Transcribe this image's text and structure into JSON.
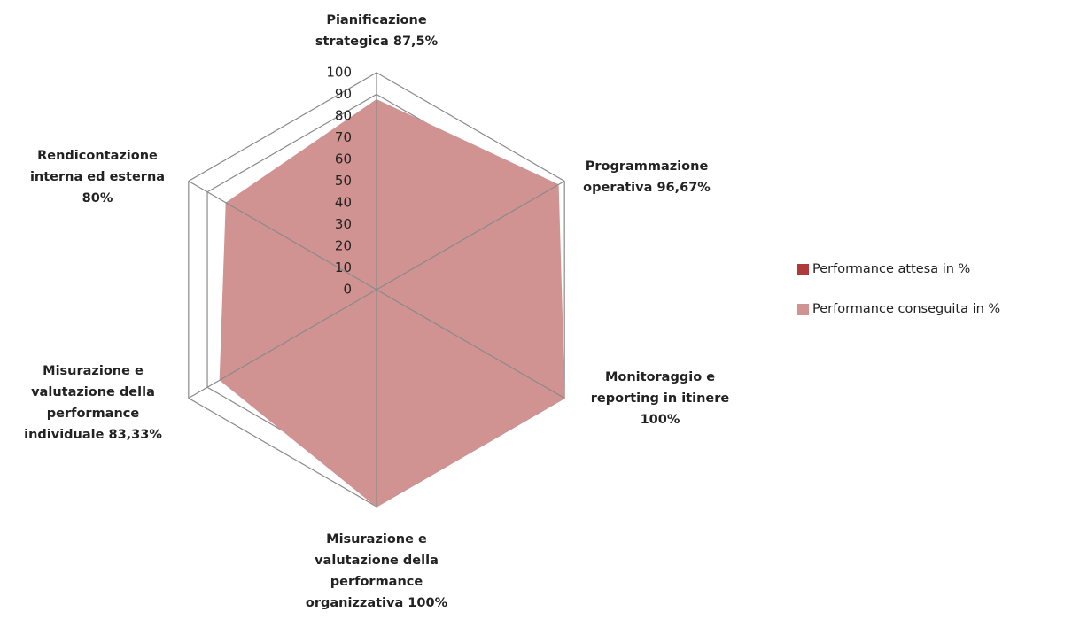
{
  "chart_data": {
    "type": "radar",
    "categories": [
      "Pianificazione strategica 87,5%",
      "Programmazione operativa 96,67%",
      "Monitoraggio e reporting in itinere 100%",
      "Misurazione e valutazione della performance organizzativa 100%",
      "Misurazione e valutazione della performance individuale 83,33%",
      "Rendicontazione interna ed esterna 80%"
    ],
    "series": [
      {
        "name": "Performance attesa in %",
        "color": "#b03a3a",
        "values": [
          null,
          null,
          null,
          null,
          null,
          null
        ]
      },
      {
        "name": "Performance conseguita in %",
        "color": "#d09392",
        "values": [
          87.5,
          96.67,
          100,
          100,
          83.33,
          80
        ]
      }
    ],
    "ylim": [
      0,
      100
    ],
    "yticks": [
      0,
      10,
      20,
      30,
      40,
      50,
      60,
      70,
      80,
      90,
      100
    ],
    "grid": true,
    "legend": "right"
  }
}
